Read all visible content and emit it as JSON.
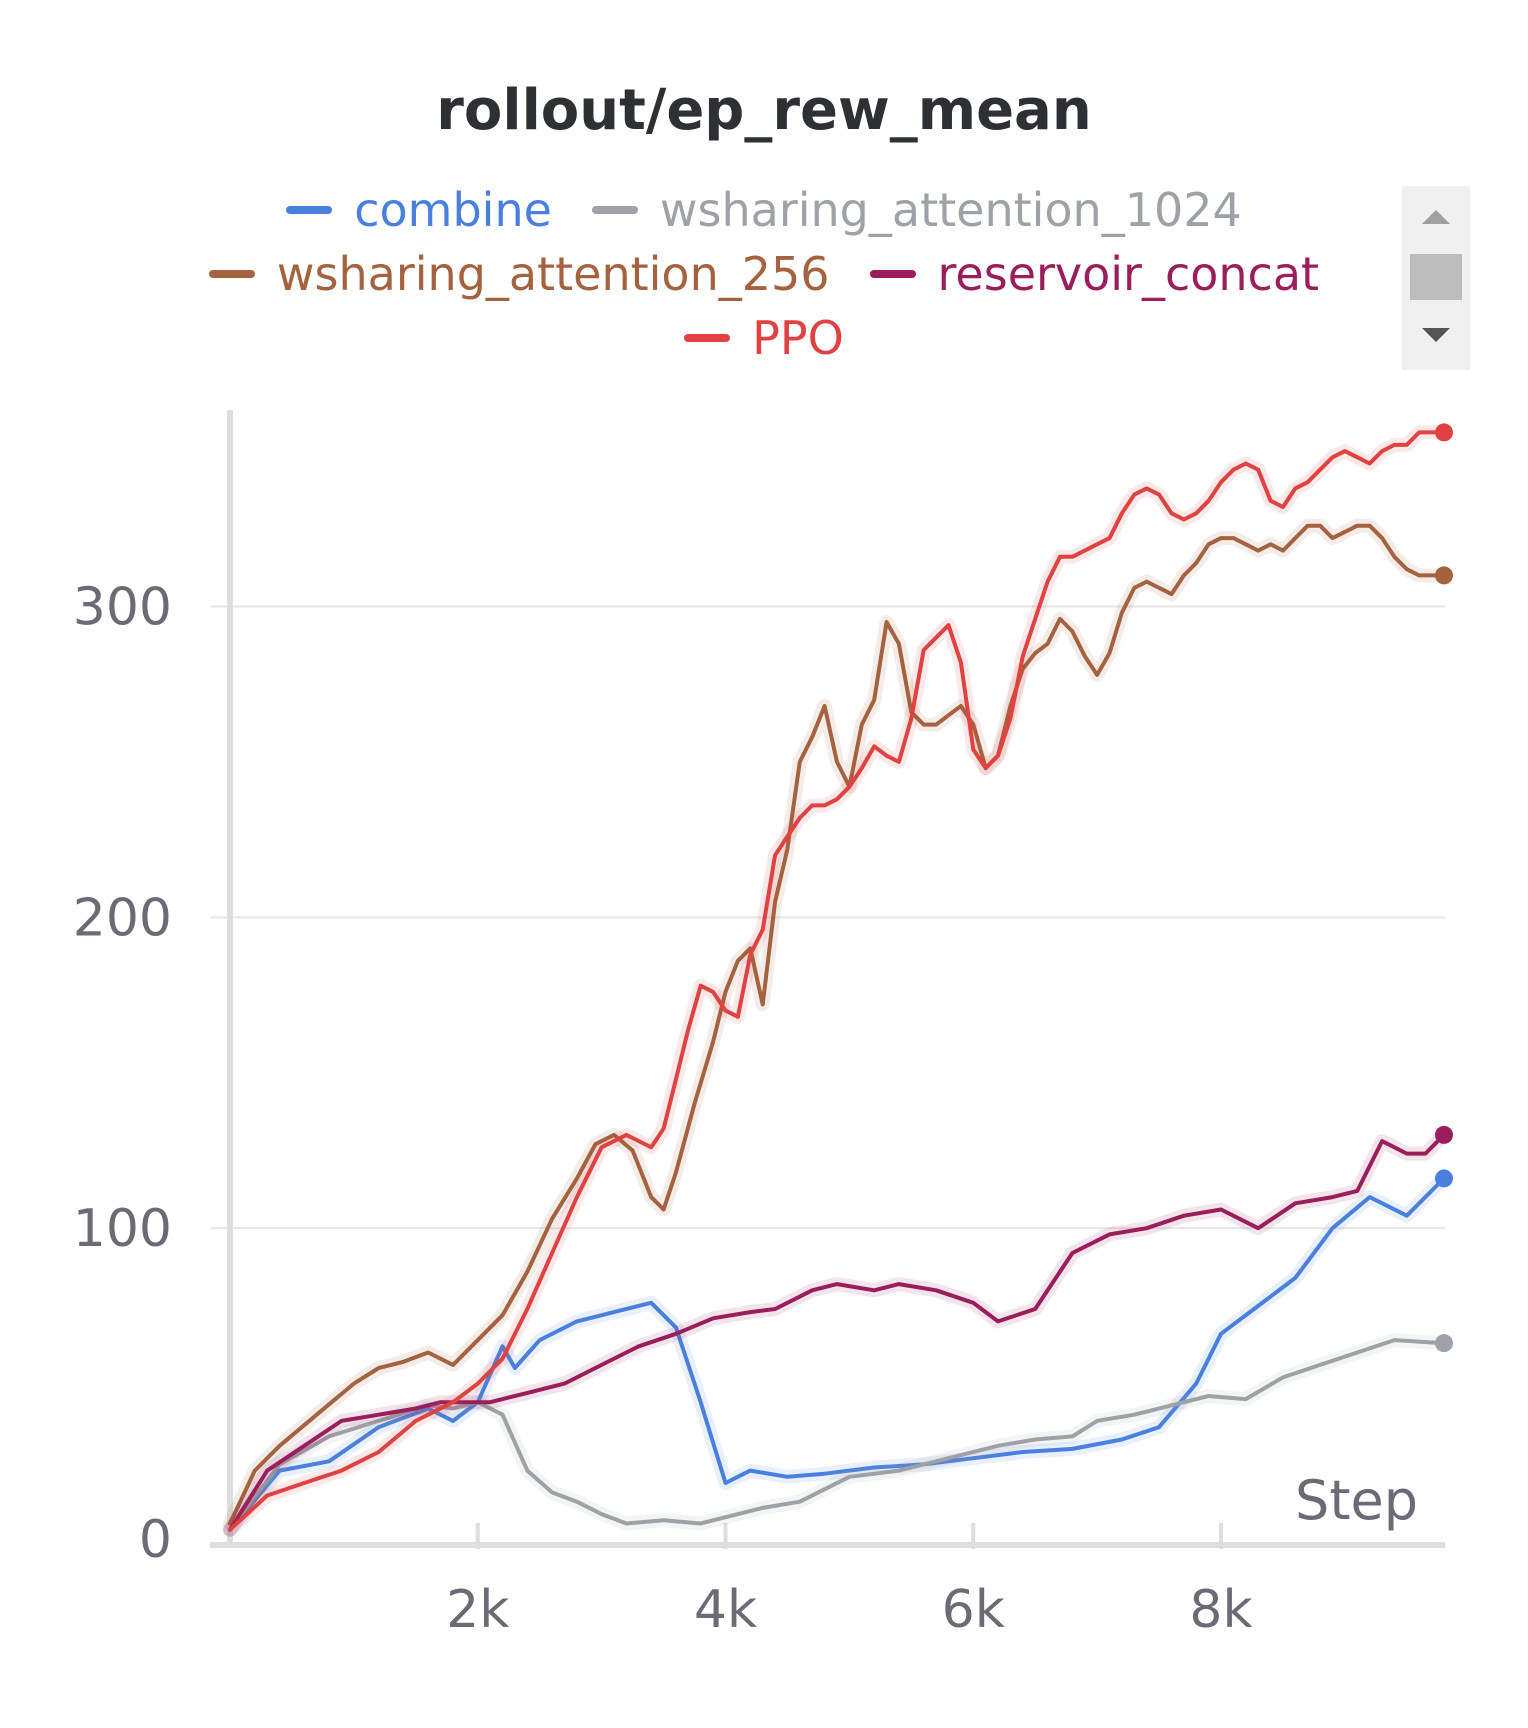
{
  "chart_data": {
    "type": "line",
    "title": "rollout/ep_rew_mean",
    "xlabel": "Step",
    "ylabel": "",
    "xlim": [
      0,
      9800
    ],
    "ylim": [
      0,
      360
    ],
    "x_ticks": [
      {
        "v": 2000,
        "label": "2k"
      },
      {
        "v": 4000,
        "label": "4k"
      },
      {
        "v": 6000,
        "label": "6k"
      },
      {
        "v": 8000,
        "label": "8k"
      }
    ],
    "y_ticks": [
      {
        "v": 0,
        "label": "0"
      },
      {
        "v": 100,
        "label": "100"
      },
      {
        "v": 200,
        "label": "200"
      },
      {
        "v": 300,
        "label": "300"
      }
    ],
    "grid": true,
    "legend_position": "top",
    "series": [
      {
        "name": "combine",
        "color": "#4a80dd",
        "x": [
          0,
          400,
          800,
          1200,
          1600,
          1800,
          2000,
          2200,
          2300,
          2500,
          2800,
          3100,
          3400,
          3600,
          3800,
          4000,
          4200,
          4500,
          4800,
          5200,
          5600,
          6000,
          6400,
          6800,
          7200,
          7500,
          7800,
          8000,
          8300,
          8600,
          8900,
          9200,
          9500,
          9800
        ],
        "y": [
          3,
          22,
          25,
          36,
          42,
          38,
          44,
          62,
          55,
          64,
          70,
          73,
          76,
          68,
          44,
          18,
          22,
          20,
          21,
          23,
          24,
          26,
          28,
          29,
          32,
          36,
          50,
          66,
          75,
          84,
          100,
          110,
          104,
          116
        ]
      },
      {
        "name": "wsharing_attention_1024",
        "color": "#9ea2a6",
        "x": [
          0,
          400,
          800,
          1200,
          1600,
          1800,
          2000,
          2200,
          2400,
          2600,
          2800,
          3000,
          3200,
          3500,
          3800,
          4000,
          4300,
          4600,
          5000,
          5400,
          5800,
          6200,
          6500,
          6800,
          7000,
          7300,
          7600,
          7900,
          8200,
          8500,
          8800,
          9100,
          9400,
          9800
        ],
        "y": [
          3,
          24,
          33,
          38,
          43,
          42,
          44,
          40,
          22,
          15,
          12,
          8,
          5,
          6,
          5,
          7,
          10,
          12,
          20,
          22,
          26,
          30,
          32,
          33,
          38,
          40,
          43,
          46,
          45,
          52,
          56,
          60,
          64,
          63
        ]
      },
      {
        "name": "wsharing_attention_256",
        "color": "#a4623e",
        "x": [
          0,
          200,
          400,
          700,
          1000,
          1200,
          1400,
          1600,
          1800,
          2000,
          2200,
          2400,
          2600,
          2800,
          2950,
          3100,
          3250,
          3400,
          3500,
          3600,
          3750,
          3900,
          4000,
          4100,
          4200,
          4300,
          4400,
          4500,
          4600,
          4700,
          4800,
          4900,
          5000,
          5100,
          5200,
          5300,
          5400,
          5500,
          5600,
          5700,
          5800,
          5900,
          6000,
          6100,
          6200,
          6300,
          6400,
          6500,
          6600,
          6700,
          6800,
          6900,
          7000,
          7100,
          7200,
          7300,
          7400,
          7500,
          7600,
          7700,
          7800,
          7900,
          8000,
          8100,
          8200,
          8300,
          8400,
          8500,
          8600,
          8700,
          8800,
          8900,
          9000,
          9100,
          9200,
          9300,
          9400,
          9500,
          9600,
          9800
        ],
        "y": [
          5,
          22,
          30,
          40,
          50,
          55,
          57,
          60,
          56,
          64,
          72,
          86,
          103,
          116,
          127,
          130,
          125,
          110,
          106,
          118,
          140,
          160,
          176,
          186,
          190,
          172,
          205,
          222,
          250,
          258,
          268,
          250,
          242,
          262,
          270,
          295,
          288,
          266,
          262,
          262,
          265,
          268,
          262,
          248,
          252,
          268,
          280,
          285,
          288,
          296,
          292,
          284,
          278,
          285,
          298,
          306,
          308,
          306,
          304,
          310,
          314,
          320,
          322,
          322,
          320,
          318,
          320,
          318,
          322,
          326,
          326,
          322,
          324,
          326,
          326,
          322,
          316,
          312,
          310,
          310
        ]
      },
      {
        "name": "reservoir_concat",
        "color": "#9a1e5c",
        "x": [
          0,
          300,
          600,
          900,
          1200,
          1500,
          1700,
          1900,
          2100,
          2400,
          2700,
          3000,
          3300,
          3600,
          3900,
          4200,
          4400,
          4700,
          4900,
          5200,
          5400,
          5700,
          6000,
          6200,
          6500,
          6800,
          7100,
          7400,
          7700,
          8000,
          8300,
          8600,
          8900,
          9100,
          9300,
          9500,
          9650,
          9800
        ],
        "y": [
          3,
          22,
          30,
          38,
          40,
          42,
          44,
          44,
          44,
          47,
          50,
          56,
          62,
          66,
          71,
          73,
          74,
          80,
          82,
          80,
          82,
          80,
          76,
          70,
          74,
          92,
          98,
          100,
          104,
          106,
          100,
          108,
          110,
          112,
          128,
          124,
          124,
          130
        ]
      },
      {
        "name": "PPO",
        "color": "#e04242",
        "x": [
          0,
          300,
          600,
          900,
          1200,
          1500,
          1800,
          2000,
          2200,
          2400,
          2600,
          2800,
          3000,
          3200,
          3400,
          3500,
          3600,
          3700,
          3800,
          3900,
          4000,
          4100,
          4200,
          4300,
          4400,
          4500,
          4600,
          4700,
          4800,
          4900,
          5000,
          5100,
          5200,
          5300,
          5400,
          5500,
          5600,
          5700,
          5800,
          5900,
          6000,
          6100,
          6200,
          6300,
          6400,
          6500,
          6600,
          6700,
          6800,
          6900,
          7000,
          7100,
          7200,
          7300,
          7400,
          7500,
          7600,
          7700,
          7800,
          7900,
          8000,
          8100,
          8200,
          8300,
          8400,
          8500,
          8600,
          8700,
          8800,
          8900,
          9000,
          9100,
          9200,
          9300,
          9400,
          9500,
          9600,
          9800
        ],
        "y": [
          3,
          14,
          18,
          22,
          28,
          38,
          44,
          50,
          58,
          74,
          92,
          110,
          126,
          130,
          126,
          132,
          148,
          164,
          178,
          176,
          170,
          168,
          188,
          196,
          220,
          226,
          232,
          236,
          236,
          238,
          242,
          248,
          255,
          252,
          250,
          264,
          286,
          290,
          294,
          282,
          254,
          248,
          252,
          264,
          284,
          296,
          308,
          316,
          316,
          318,
          320,
          322,
          330,
          336,
          338,
          336,
          330,
          328,
          330,
          334,
          340,
          344,
          346,
          344,
          334,
          332,
          338,
          340,
          344,
          348,
          350,
          348,
          346,
          350,
          352,
          352,
          356,
          356
        ]
      }
    ]
  }
}
